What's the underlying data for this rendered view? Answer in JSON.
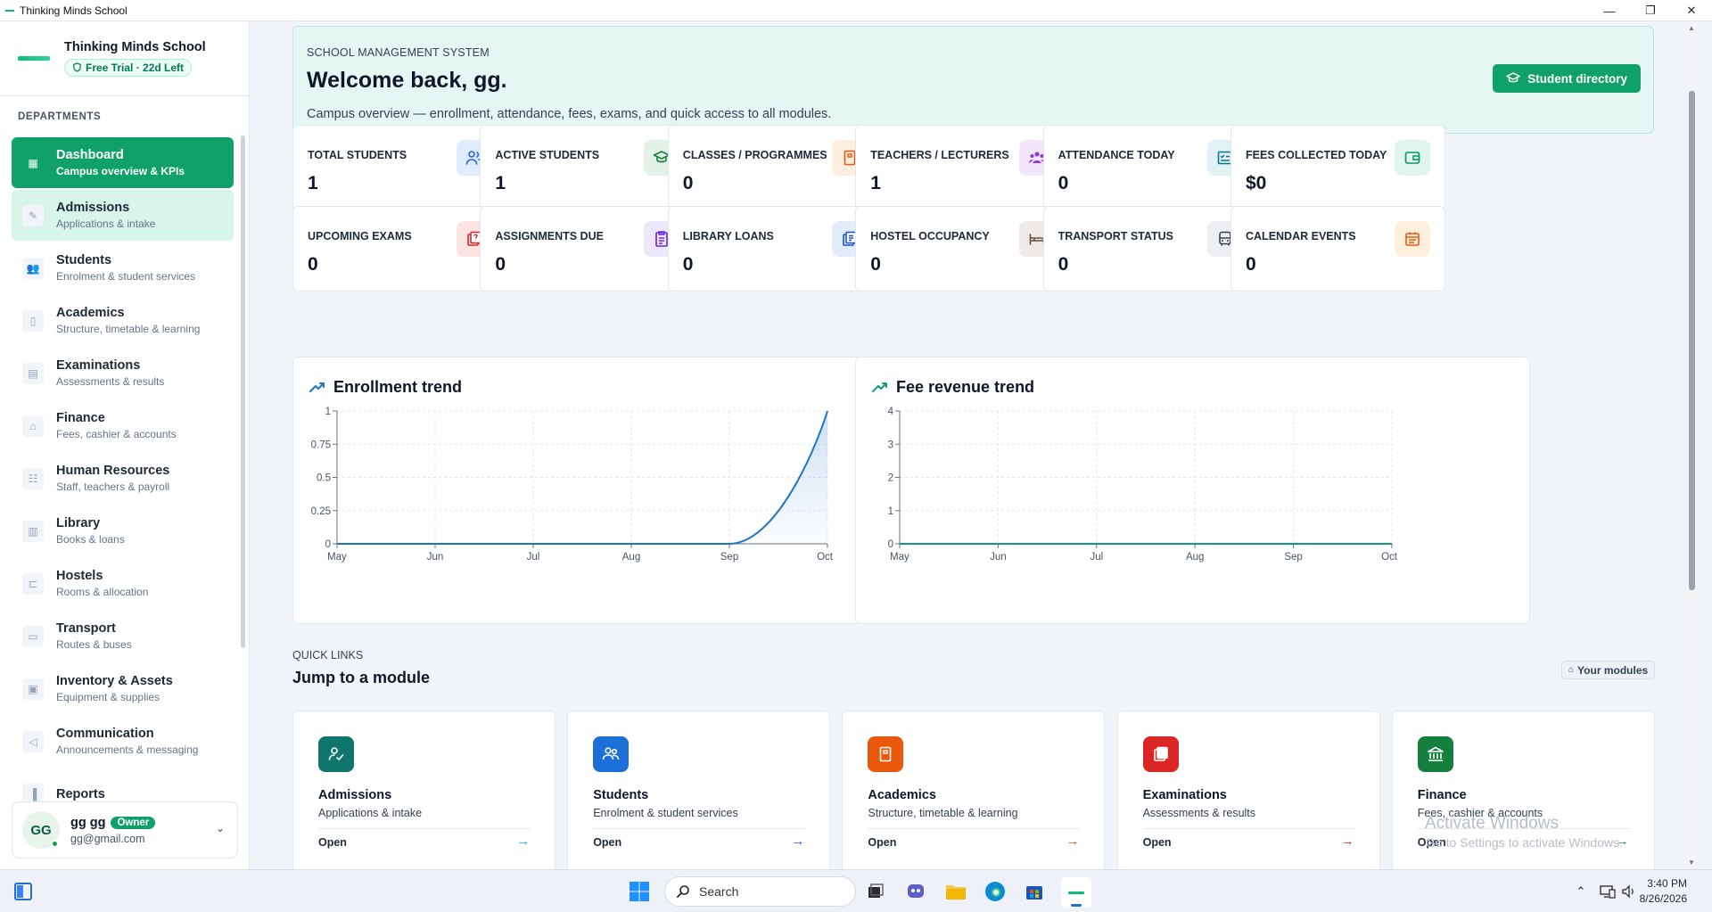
{
  "window": {
    "title": "Thinking Minds School",
    "controls": [
      "—",
      "❐",
      "✕"
    ]
  },
  "brand": {
    "name": "Thinking Minds School",
    "trial": "Free Trial · 22d Left"
  },
  "sidebar": {
    "section_label": "DEPARTMENTS",
    "items": [
      {
        "title": "Dashboard",
        "sub": "Campus overview & KPIs",
        "icon": "dashboard-icon",
        "glyph": "▦",
        "state": "active"
      },
      {
        "title": "Admissions",
        "sub": "Applications & intake",
        "icon": "admissions-icon",
        "glyph": "✎",
        "state": "hover"
      },
      {
        "title": "Students",
        "sub": "Enrolment & student services",
        "icon": "students-icon",
        "glyph": "👥",
        "state": ""
      },
      {
        "title": "Academics",
        "sub": "Structure, timetable & learning",
        "icon": "book-icon",
        "glyph": "▯",
        "state": ""
      },
      {
        "title": "Examinations",
        "sub": "Assessments & results",
        "icon": "exam-icon",
        "glyph": "▤",
        "state": ""
      },
      {
        "title": "Finance",
        "sub": "Fees, cashier & accounts",
        "icon": "bank-icon",
        "glyph": "⌂",
        "state": ""
      },
      {
        "title": "Human Resources",
        "sub": "Staff, teachers & payroll",
        "icon": "people-icon",
        "glyph": "☷",
        "state": ""
      },
      {
        "title": "Library",
        "sub": "Books & loans",
        "icon": "library-icon",
        "glyph": "▥",
        "state": ""
      },
      {
        "title": "Hostels",
        "sub": "Rooms & allocation",
        "icon": "bed-icon",
        "glyph": "⊏",
        "state": ""
      },
      {
        "title": "Transport",
        "sub": "Routes & buses",
        "icon": "bus-icon",
        "glyph": "▭",
        "state": ""
      },
      {
        "title": "Inventory & Assets",
        "sub": "Equipment & supplies",
        "icon": "archive-icon",
        "glyph": "▣",
        "state": ""
      },
      {
        "title": "Communication",
        "sub": "Announcements & messaging",
        "icon": "megaphone-icon",
        "glyph": "◁",
        "state": ""
      },
      {
        "title": "Reports",
        "sub": "",
        "icon": "chart-icon",
        "glyph": "▐",
        "state": ""
      }
    ],
    "user": {
      "initials": "GG",
      "name": "gg gg",
      "role": "Owner",
      "email": "gg@gmail.com"
    }
  },
  "hero": {
    "kicker": "SCHOOL MANAGEMENT SYSTEM",
    "welcome": "Welcome back, gg.",
    "description": "Campus overview — enrollment, attendance, fees, exams, and quick access to all modules.",
    "button": "Student directory"
  },
  "kpis": [
    {
      "label": "TOTAL STUDENTS",
      "value": "1",
      "icon": "users-icon",
      "bg": "#e0ecff",
      "fg": "#2563eb"
    },
    {
      "label": "ACTIVE STUDENTS",
      "value": "1",
      "icon": "graduation-cap-icon",
      "bg": "#e3f2e6",
      "fg": "#16803c"
    },
    {
      "label": "CLASSES / PROGRAMMES",
      "value": "0",
      "icon": "book-icon",
      "bg": "#ffeedd",
      "fg": "#ea580c"
    },
    {
      "label": "TEACHERS / LECTURERS",
      "value": "1",
      "icon": "group-icon",
      "bg": "#f1e6fa",
      "fg": "#9333ea"
    },
    {
      "label": "ATTENDANCE TODAY",
      "value": "0",
      "icon": "checklist-icon",
      "bg": "#e0f2f4",
      "fg": "#0e7490"
    },
    {
      "label": "FEES COLLECTED TODAY",
      "value": "$0",
      "icon": "wallet-icon",
      "bg": "#e0f5ec",
      "fg": "#059669"
    },
    {
      "label": "UPCOMING EXAMS",
      "value": "0",
      "icon": "exam-icon",
      "bg": "#fde4e4",
      "fg": "#dc2626"
    },
    {
      "label": "ASSIGNMENTS DUE",
      "value": "0",
      "icon": "assignment-icon",
      "bg": "#ece8fb",
      "fg": "#6d28d9"
    },
    {
      "label": "LIBRARY LOANS",
      "value": "0",
      "icon": "library-icon",
      "bg": "#e2ecfa",
      "fg": "#1d4ed8"
    },
    {
      "label": "HOSTEL OCCUPANCY",
      "value": "0",
      "icon": "bed-icon",
      "bg": "#efeae7",
      "fg": "#6b4f3f"
    },
    {
      "label": "TRANSPORT STATUS",
      "value": "0",
      "icon": "bus-icon",
      "bg": "#eceef1",
      "fg": "#374151"
    },
    {
      "label": "CALENDAR EVENTS",
      "value": "0",
      "icon": "calendar-icon",
      "bg": "#fff0dd",
      "fg": "#ea580c"
    }
  ],
  "chart_data": [
    {
      "type": "area",
      "title": "Enrollment trend",
      "x": [
        "May",
        "Jun",
        "Jul",
        "Aug",
        "Sep",
        "Oct"
      ],
      "series": [
        {
          "values": [
            0,
            0,
            0,
            0,
            0,
            1
          ]
        }
      ],
      "ylim": [
        0,
        1
      ],
      "yticks": [
        "0",
        "0.25",
        "0.5",
        "0.75",
        "1"
      ],
      "grid": true,
      "color": "#1d74c8"
    },
    {
      "type": "line",
      "title": "Fee revenue trend",
      "x": [
        "May",
        "Jun",
        "Jul",
        "Aug",
        "Sep",
        "Oct"
      ],
      "series": [
        {
          "values": [
            0,
            0,
            0,
            0,
            0,
            0
          ]
        }
      ],
      "ylim": [
        0,
        4
      ],
      "yticks": [
        "0",
        "1",
        "2",
        "3",
        "4"
      ],
      "grid": true,
      "color": "#0e9f7a"
    }
  ],
  "quick_links": {
    "kicker": "QUICK LINKS",
    "title": "Jump to a module",
    "badge": "Your modules",
    "open_label": "Open",
    "modules": [
      {
        "title": "Admissions",
        "sub": "Applications & intake",
        "icon": "admissions-icon",
        "bg": "#0f766e",
        "arrow": "#0ea5e9"
      },
      {
        "title": "Students",
        "sub": "Enrolment & student services",
        "icon": "students-icon",
        "bg": "#1d6fd8",
        "arrow": "#2563eb"
      },
      {
        "title": "Academics",
        "sub": "Structure, timetable & learning",
        "icon": "book-icon",
        "bg": "#ea580c",
        "arrow": "#ea580c"
      },
      {
        "title": "Examinations",
        "sub": "Assessments & results",
        "icon": "exam-icon",
        "bg": "#dc2626",
        "arrow": "#dc2626"
      },
      {
        "title": "Finance",
        "sub": "Fees, cashier & accounts",
        "icon": "bank-icon",
        "bg": "#15803d",
        "arrow": "#16a34a"
      }
    ]
  },
  "watermark": {
    "line1": "Activate Windows",
    "line2": "Go to Settings to activate Windows."
  },
  "taskbar": {
    "search": "Search",
    "time": "3:40 PM",
    "date": "8/26/2026"
  }
}
